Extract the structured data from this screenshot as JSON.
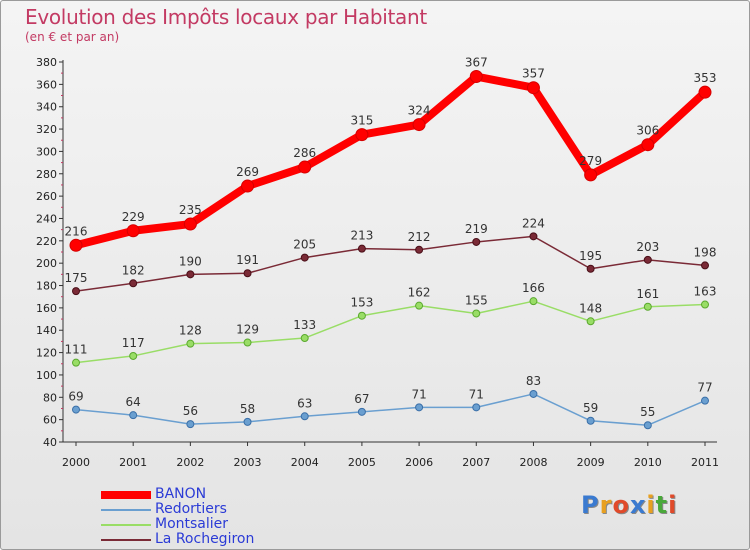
{
  "title": "Evolution des Impôts locaux par Habitant",
  "subtitle": "(en € et par an)",
  "logo": "Proxiti",
  "chart_data": {
    "type": "line",
    "title": "Evolution des Impôts locaux par Habitant",
    "subtitle": "(en € et par an)",
    "categories": [
      "2000",
      "2001",
      "2002",
      "2003",
      "2004",
      "2005",
      "2006",
      "2007",
      "2008",
      "2009",
      "2010",
      "2011"
    ],
    "yticks": [
      40,
      60,
      80,
      100,
      120,
      140,
      160,
      180,
      200,
      220,
      240,
      260,
      280,
      300,
      320,
      340,
      360,
      380
    ],
    "ylim": [
      40,
      380
    ],
    "grid": false,
    "legend_position": "bottom-left",
    "series": [
      {
        "name": "BANON",
        "color": "#ff0000",
        "values": [
          216,
          229,
          235,
          269,
          286,
          315,
          324,
          367,
          357,
          279,
          306,
          353
        ]
      },
      {
        "name": "Redortiers",
        "color": "#6a9fd0",
        "values": [
          69,
          64,
          56,
          58,
          63,
          67,
          71,
          71,
          83,
          59,
          55,
          77
        ]
      },
      {
        "name": "Montsalier",
        "color": "#99dd66",
        "values": [
          111,
          117,
          128,
          129,
          133,
          153,
          162,
          155,
          166,
          148,
          161,
          163
        ]
      },
      {
        "name": "La Rochegiron",
        "color": "#7a2a36",
        "values": [
          175,
          182,
          190,
          191,
          205,
          213,
          212,
          219,
          224,
          195,
          203,
          198
        ]
      }
    ]
  }
}
